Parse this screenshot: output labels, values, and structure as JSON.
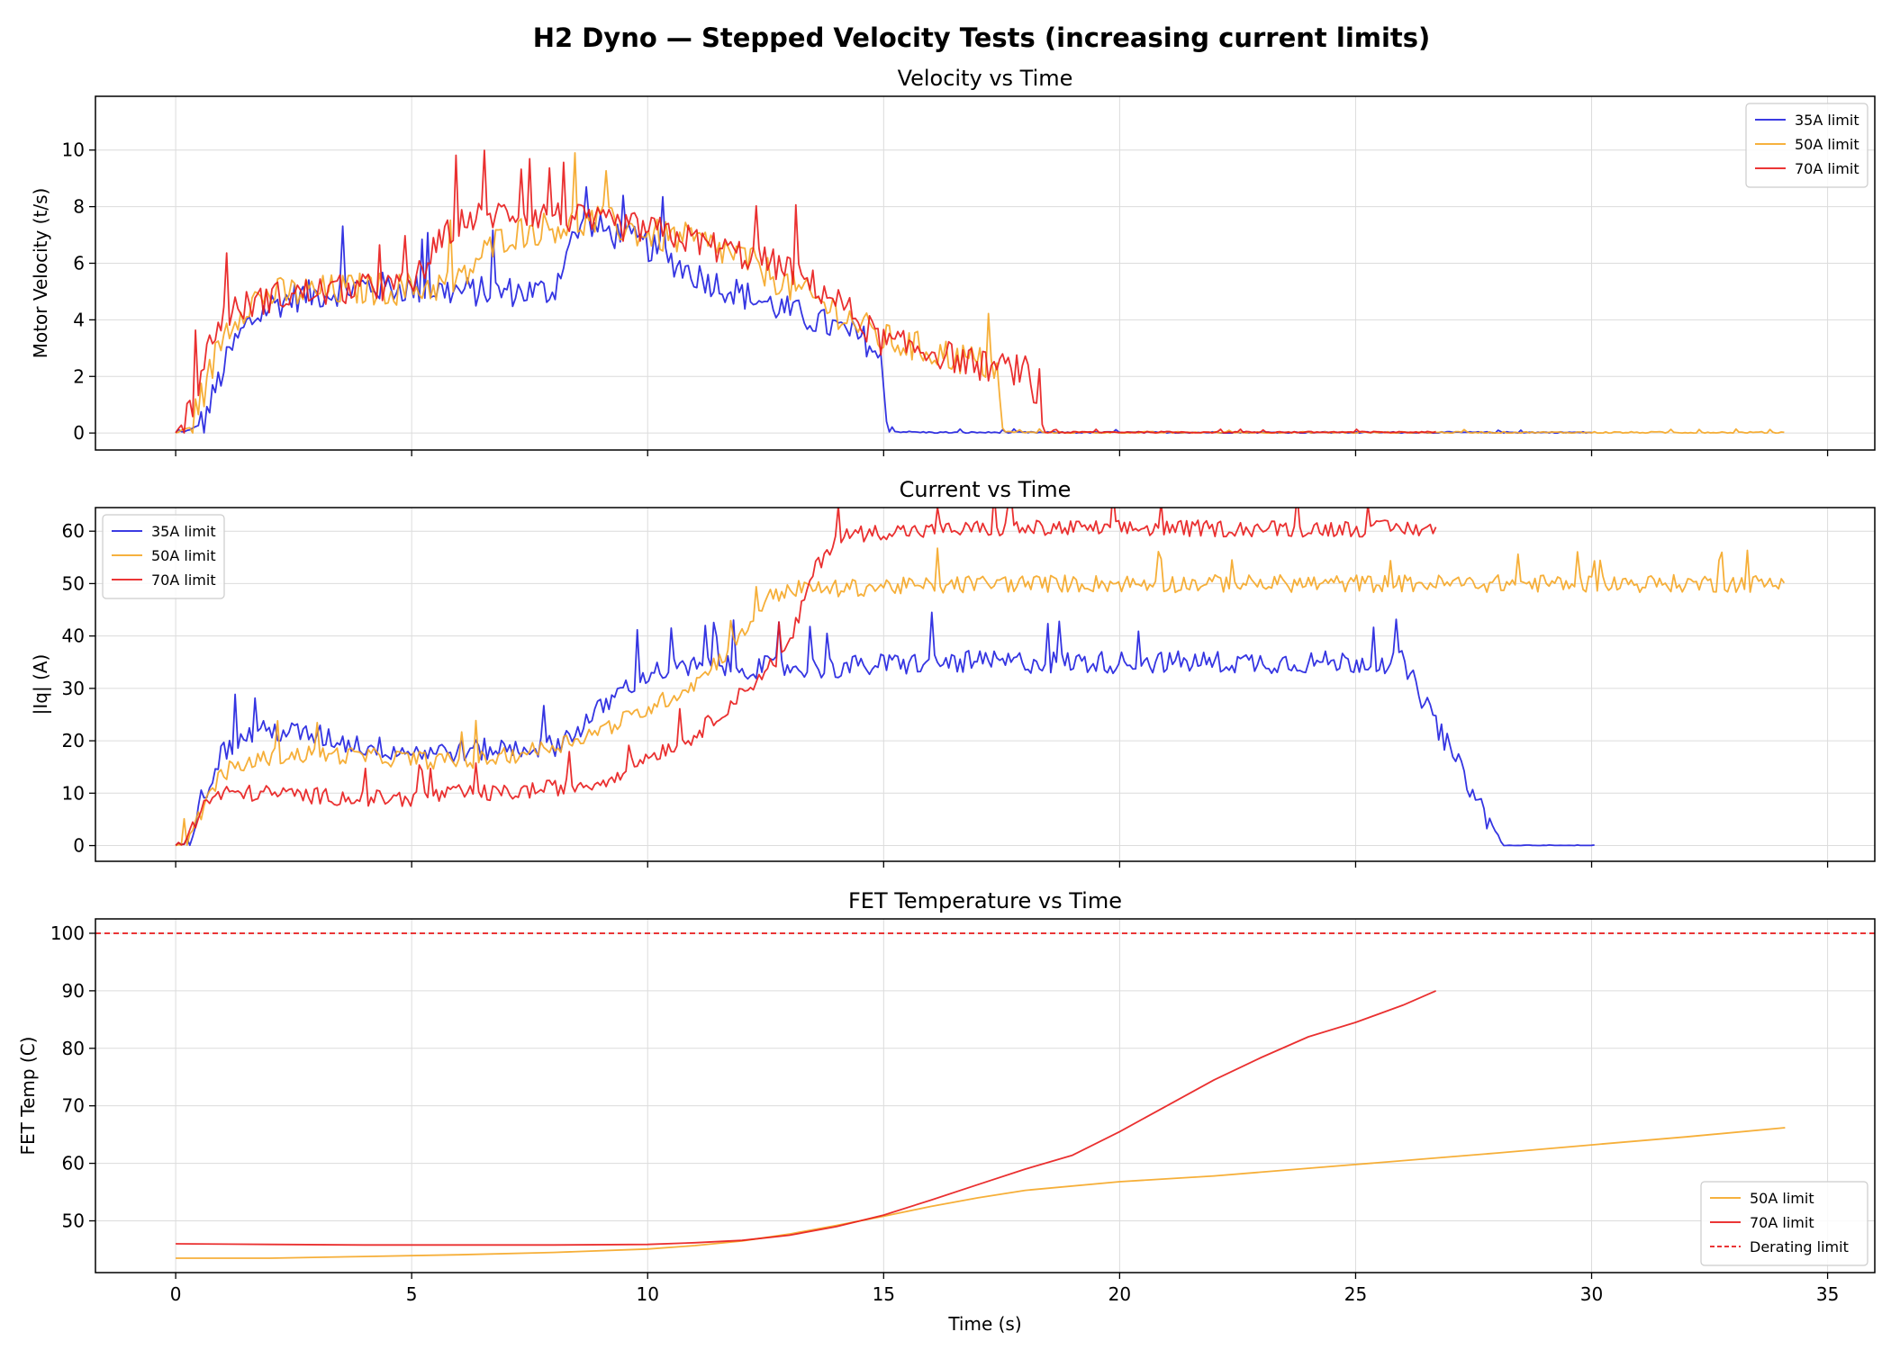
{
  "figure_title": "H2 Dyno — Stepped Velocity Tests (increasing current limits)",
  "colors": {
    "35A": "#1f1fdf",
    "50A": "#f5a623",
    "70A": "#e8191a",
    "derating": "#e8191a",
    "grid": "#dcdcdc"
  },
  "chart_data": [
    {
      "type": "line",
      "title": "Velocity vs Time",
      "xlabel": "",
      "ylabel": "Motor Velocity (t/s)",
      "xlim": [
        -1.7,
        36.0
      ],
      "ylim": [
        -0.6,
        11.9
      ],
      "xticks": [
        0,
        5,
        10,
        15,
        20,
        25,
        30,
        35
      ],
      "yticks": [
        0,
        2,
        4,
        6,
        8,
        10
      ],
      "grid": true,
      "legend": "top-right",
      "series": [
        {
          "name": "35A limit",
          "color": "#1f1fdf",
          "points": [
            [
              0,
              0
            ],
            [
              0.3,
              0.1
            ],
            [
              0.6,
              0.4
            ],
            [
              0.9,
              1.8
            ],
            [
              1.2,
              3.0
            ],
            [
              1.5,
              3.8
            ],
            [
              2,
              4.5
            ],
            [
              2.5,
              4.8
            ],
            [
              3,
              4.9
            ],
            [
              4,
              5.2
            ],
            [
              5,
              5.1
            ],
            [
              6,
              5.0
            ],
            [
              7,
              5.0
            ],
            [
              8,
              5.0
            ],
            [
              8.3,
              6.5
            ],
            [
              8.6,
              7.3
            ],
            [
              9,
              7.2
            ],
            [
              10,
              6.6
            ],
            [
              11,
              5.6
            ],
            [
              12,
              4.9
            ],
            [
              13,
              4.3
            ],
            [
              14,
              3.7
            ],
            [
              14.7,
              3.2
            ],
            [
              14.95,
              2.4
            ],
            [
              15.05,
              0.6
            ],
            [
              15.2,
              0.05
            ],
            [
              16,
              0.02
            ],
            [
              17.5,
              0.02
            ],
            [
              20,
              0.02
            ],
            [
              25,
              0.02
            ],
            [
              30,
              0.02
            ]
          ],
          "noise": 0.55
        },
        {
          "name": "50A limit",
          "color": "#f5a623",
          "points": [
            [
              0,
              0
            ],
            [
              0.3,
              0.2
            ],
            [
              0.6,
              1.5
            ],
            [
              1,
              3.5
            ],
            [
              1.5,
              4.6
            ],
            [
              2,
              4.9
            ],
            [
              3,
              5.0
            ],
            [
              4,
              5.1
            ],
            [
              5,
              5.1
            ],
            [
              6,
              5.3
            ],
            [
              6.5,
              6.3
            ],
            [
              7,
              7.0
            ],
            [
              8,
              7.3
            ],
            [
              9,
              7.5
            ],
            [
              10,
              7.0
            ],
            [
              11,
              6.8
            ],
            [
              12,
              6.2
            ],
            [
              13,
              5.2
            ],
            [
              14,
              4.3
            ],
            [
              15,
              3.3
            ],
            [
              16,
              2.9
            ],
            [
              17,
              2.5
            ],
            [
              17.4,
              2.3
            ],
            [
              17.5,
              0.05
            ],
            [
              18,
              0.02
            ],
            [
              20,
              0.02
            ],
            [
              25,
              0.02
            ],
            [
              30,
              0.02
            ],
            [
              34.1,
              0.02
            ]
          ],
          "noise": 0.6
        },
        {
          "name": "70A limit",
          "color": "#e8191a",
          "points": [
            [
              0,
              0
            ],
            [
              0.3,
              0.8
            ],
            [
              0.7,
              3.0
            ],
            [
              1,
              4.2
            ],
            [
              2,
              4.8
            ],
            [
              3,
              5.0
            ],
            [
              4,
              5.1
            ],
            [
              5,
              5.2
            ],
            [
              5.5,
              6.5
            ],
            [
              6,
              7.5
            ],
            [
              7,
              7.8
            ],
            [
              8,
              7.7
            ],
            [
              9,
              7.4
            ],
            [
              10,
              7.2
            ],
            [
              11,
              6.8
            ],
            [
              12,
              6.3
            ],
            [
              13,
              5.8
            ],
            [
              14,
              4.7
            ],
            [
              15,
              3.2
            ],
            [
              16,
              2.9
            ],
            [
              17,
              2.4
            ],
            [
              18,
              2.2
            ],
            [
              18.25,
              1.0
            ],
            [
              18.4,
              0.02
            ],
            [
              20,
              0.03
            ],
            [
              25,
              0.03
            ],
            [
              26.7,
              0.03
            ]
          ],
          "noise": 0.55
        }
      ]
    },
    {
      "type": "line",
      "title": "Current vs Time",
      "xlabel": "",
      "ylabel": "|Iq| (A)",
      "xlim": [
        -1.7,
        36.0
      ],
      "ylim": [
        -3.0,
        64.5
      ],
      "xticks": [
        0,
        5,
        10,
        15,
        20,
        25,
        30,
        35
      ],
      "yticks": [
        0,
        10,
        20,
        30,
        40,
        50,
        60
      ],
      "grid": true,
      "legend": "top-left",
      "series": [
        {
          "name": "35A limit",
          "color": "#1f1fdf",
          "points": [
            [
              0,
              0
            ],
            [
              0.3,
              2
            ],
            [
              0.5,
              8
            ],
            [
              1,
              18
            ],
            [
              1.5,
              21
            ],
            [
              2,
              22
            ],
            [
              3,
              21
            ],
            [
              4,
              19
            ],
            [
              5,
              18
            ],
            [
              6,
              18
            ],
            [
              7,
              18.5
            ],
            [
              8,
              19
            ],
            [
              8.5,
              22
            ],
            [
              9,
              26
            ],
            [
              9.5,
              30
            ],
            [
              10,
              33
            ],
            [
              11,
              34
            ],
            [
              12,
              34
            ],
            [
              13,
              34
            ],
            [
              14,
              34
            ],
            [
              15,
              34.5
            ],
            [
              16,
              35
            ],
            [
              20,
              35
            ],
            [
              25,
              35
            ],
            [
              26,
              35
            ],
            [
              28.1,
              0
            ],
            [
              30.1,
              0
            ]
          ],
          "noise": 2.2
        },
        {
          "name": "50A limit",
          "color": "#f5a623",
          "points": [
            [
              0,
              0
            ],
            [
              0.3,
              1
            ],
            [
              0.6,
              8
            ],
            [
              1,
              14
            ],
            [
              2,
              17
            ],
            [
              3,
              17.5
            ],
            [
              4,
              17
            ],
            [
              5,
              16.5
            ],
            [
              6,
              16
            ],
            [
              7,
              17
            ],
            [
              8,
              19
            ],
            [
              9,
              22
            ],
            [
              10,
              26
            ],
            [
              11,
              31
            ],
            [
              12,
              40
            ],
            [
              12.5,
              47
            ],
            [
              13,
              49
            ],
            [
              14,
              49
            ],
            [
              15,
              49.5
            ],
            [
              16,
              49.5
            ],
            [
              17,
              50
            ],
            [
              20,
              50
            ],
            [
              25,
              50
            ],
            [
              30,
              50
            ],
            [
              34.1,
              50
            ]
          ],
          "noise": 1.7
        },
        {
          "name": "70A limit",
          "color": "#e8191a",
          "points": [
            [
              0,
              0
            ],
            [
              0.3,
              2
            ],
            [
              0.6,
              8
            ],
            [
              1,
              10
            ],
            [
              2,
              10
            ],
            [
              3,
              9.5
            ],
            [
              4,
              9
            ],
            [
              5,
              9
            ],
            [
              6,
              10
            ],
            [
              7,
              10
            ],
            [
              8,
              11
            ],
            [
              9,
              12
            ],
            [
              10,
              17
            ],
            [
              11,
              21
            ],
            [
              12,
              29
            ],
            [
              13,
              38
            ],
            [
              13.5,
              52
            ],
            [
              14,
              59
            ],
            [
              15,
              60
            ],
            [
              16,
              60
            ],
            [
              17,
              60.5
            ],
            [
              18,
              60.5
            ],
            [
              20,
              60.5
            ],
            [
              25,
              60.5
            ],
            [
              26.7,
              60.5
            ]
          ],
          "noise": 1.6
        }
      ]
    },
    {
      "type": "line",
      "title": "FET Temperature vs Time",
      "xlabel": "Time (s)",
      "ylabel": "FET Temp (C)",
      "xlim": [
        -1.7,
        36.0
      ],
      "ylim": [
        41.0,
        102.5
      ],
      "xticks": [
        0,
        5,
        10,
        15,
        20,
        25,
        30,
        35
      ],
      "yticks": [
        50,
        60,
        70,
        80,
        90,
        100
      ],
      "grid": true,
      "legend": "bottom-right",
      "series": [
        {
          "name": "50A limit",
          "color": "#f5a623",
          "points": [
            [
              0,
              43.5
            ],
            [
              2,
              43.5
            ],
            [
              4,
              43.8
            ],
            [
              6,
              44.1
            ],
            [
              8,
              44.5
            ],
            [
              10,
              45.1
            ],
            [
              11,
              45.7
            ],
            [
              12,
              46.5
            ],
            [
              13,
              47.7
            ],
            [
              14,
              49.2
            ],
            [
              15,
              50.8
            ],
            [
              16,
              52.5
            ],
            [
              17,
              54.0
            ],
            [
              18,
              55.3
            ],
            [
              20,
              56.8
            ],
            [
              22,
              57.8
            ],
            [
              25,
              59.8
            ],
            [
              28,
              61.8
            ],
            [
              30,
              63.2
            ],
            [
              32,
              64.6
            ],
            [
              34.1,
              66.2
            ]
          ],
          "noise": 0
        },
        {
          "name": "70A limit",
          "color": "#e8191a",
          "points": [
            [
              0,
              46.0
            ],
            [
              2,
              45.9
            ],
            [
              4,
              45.8
            ],
            [
              6,
              45.8
            ],
            [
              8,
              45.8
            ],
            [
              10,
              45.9
            ],
            [
              11,
              46.2
            ],
            [
              12,
              46.6
            ],
            [
              13,
              47.5
            ],
            [
              14,
              49.0
            ],
            [
              15,
              51.0
            ],
            [
              16,
              53.6
            ],
            [
              17,
              56.3
            ],
            [
              18,
              59.0
            ],
            [
              19,
              61.4
            ],
            [
              20,
              65.5
            ],
            [
              21,
              70.0
            ],
            [
              22,
              74.5
            ],
            [
              23,
              78.4
            ],
            [
              24,
              82.0
            ],
            [
              25,
              84.5
            ],
            [
              26,
              87.5
            ],
            [
              26.7,
              90.0
            ]
          ],
          "noise": 0
        }
      ],
      "reference_line": {
        "name": "Derating limit",
        "y": 100,
        "color": "#e8191a",
        "style": "dashed"
      }
    }
  ]
}
